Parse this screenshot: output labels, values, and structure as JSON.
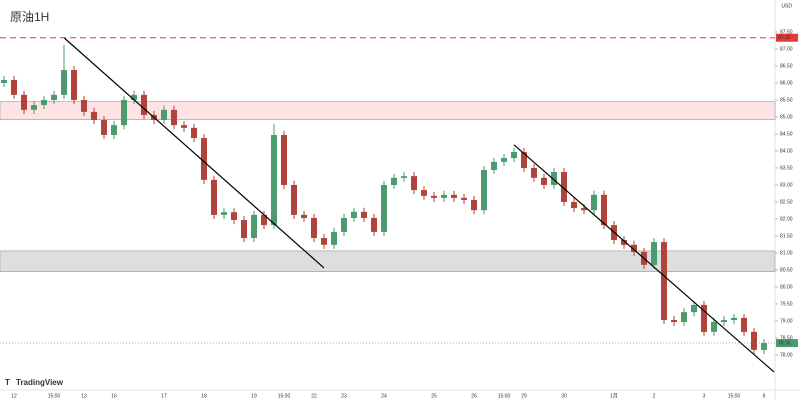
{
  "chart_data": {
    "type": "candlestick",
    "title": "原油1H",
    "currency": "USD",
    "brand": "TradingView",
    "up_color": "#4c9a6f",
    "down_color": "#b0443a",
    "categories": [
      null,
      "12",
      null,
      null,
      null,
      "15:00",
      null,
      null,
      "13",
      null,
      null,
      "16",
      null,
      null,
      null,
      null,
      "17",
      null,
      null,
      null,
      "18",
      null,
      null,
      null,
      null,
      "19",
      null,
      null,
      "15:00",
      null,
      null,
      "22",
      null,
      null,
      "23",
      null,
      null,
      null,
      "24",
      null,
      null,
      null,
      null,
      "25",
      null,
      null,
      null,
      "26",
      null,
      null,
      "15:00",
      null,
      "29",
      null,
      null,
      null,
      "30",
      null,
      null,
      null,
      null,
      "1月",
      null,
      null,
      null,
      "2",
      null,
      null,
      null,
      null,
      "3",
      null,
      null,
      "15:00",
      null,
      null,
      "6"
    ],
    "open": [
      86.0,
      86.09,
      85.65,
      85.21,
      85.35,
      85.5,
      85.65,
      86.38,
      85.5,
      85.15,
      84.91,
      84.47,
      84.76,
      85.5,
      85.65,
      85.06,
      84.91,
      85.21,
      84.76,
      84.68,
      84.38,
      83.15,
      82.12,
      82.2,
      81.97,
      81.44,
      82.12,
      81.82,
      84.47,
      83.0,
      82.12,
      82.03,
      81.44,
      81.24,
      81.62,
      82.03,
      82.21,
      82.03,
      81.62,
      83.0,
      83.21,
      83.26,
      82.85,
      82.68,
      82.62,
      82.71,
      82.62,
      82.56,
      82.26,
      83.44,
      83.68,
      83.79,
      83.97,
      83.5,
      83.21,
      83.0,
      83.38,
      82.5,
      82.32,
      82.26,
      82.71,
      81.82,
      81.38,
      81.24,
      81.03,
      80.65,
      81.32,
      79.03,
      78.97,
      79.26,
      79.47,
      78.68,
      78.97,
      79.03,
      79.09,
      78.68,
      78.15
    ],
    "high": [
      86.21,
      86.21,
      85.77,
      85.47,
      85.62,
      85.77,
      87.12,
      86.5,
      85.62,
      85.27,
      85.03,
      84.88,
      85.62,
      85.77,
      85.77,
      85.18,
      85.33,
      85.33,
      84.88,
      84.8,
      84.5,
      83.27,
      82.32,
      82.32,
      82.09,
      82.24,
      82.24,
      84.8,
      84.59,
      83.12,
      82.24,
      82.15,
      81.56,
      81.74,
      82.15,
      82.33,
      82.33,
      82.15,
      83.12,
      83.33,
      83.38,
      83.38,
      82.97,
      82.8,
      82.83,
      82.83,
      82.74,
      82.68,
      83.56,
      83.8,
      83.91,
      84.09,
      84.09,
      83.62,
      83.33,
      83.5,
      83.5,
      82.62,
      82.44,
      82.83,
      82.83,
      81.94,
      81.5,
      81.36,
      81.15,
      81.44,
      81.44,
      79.15,
      79.38,
      79.59,
      79.59,
      79.09,
      79.15,
      79.21,
      79.21,
      78.8,
      78.47
    ],
    "low": [
      85.88,
      85.53,
      85.09,
      85.09,
      85.23,
      85.38,
      85.53,
      85.38,
      85.03,
      84.79,
      84.35,
      84.35,
      84.64,
      85.38,
      84.94,
      84.79,
      84.79,
      84.64,
      84.56,
      84.26,
      83.03,
      82.0,
      82.0,
      81.85,
      81.32,
      81.32,
      81.7,
      81.7,
      82.88,
      82.0,
      81.91,
      81.32,
      81.12,
      81.12,
      81.5,
      81.91,
      81.91,
      81.5,
      81.5,
      82.88,
      83.09,
      82.73,
      82.56,
      82.5,
      82.5,
      82.5,
      82.44,
      82.14,
      82.14,
      83.32,
      83.56,
      83.67,
      83.38,
      83.09,
      82.88,
      82.88,
      82.38,
      82.2,
      82.14,
      82.14,
      81.7,
      81.26,
      81.12,
      80.91,
      80.53,
      80.53,
      78.91,
      78.85,
      78.85,
      79.14,
      78.56,
      78.56,
      78.85,
      78.91,
      78.56,
      78.03,
      78.03
    ],
    "close": [
      86.09,
      85.65,
      85.21,
      85.35,
      85.5,
      85.65,
      86.38,
      85.5,
      85.15,
      84.91,
      84.47,
      84.76,
      85.5,
      85.65,
      85.06,
      84.91,
      85.21,
      84.76,
      84.68,
      84.38,
      83.15,
      82.12,
      82.2,
      81.97,
      81.44,
      82.12,
      81.82,
      84.47,
      83.0,
      82.12,
      82.03,
      81.44,
      81.24,
      81.62,
      82.03,
      82.21,
      82.03,
      81.62,
      83.0,
      83.21,
      83.26,
      82.85,
      82.68,
      82.62,
      82.71,
      82.62,
      82.56,
      82.26,
      83.44,
      83.68,
      83.79,
      83.97,
      83.5,
      83.21,
      83.0,
      83.38,
      82.5,
      82.32,
      82.26,
      82.71,
      81.82,
      81.38,
      81.24,
      81.03,
      80.65,
      81.32,
      79.03,
      78.97,
      79.26,
      79.47,
      78.68,
      78.97,
      79.03,
      79.09,
      78.68,
      78.15,
      78.35
    ],
    "ylim": [
      76.97,
      88.44
    ],
    "yticks": [
      {
        "value": 78,
        "label": "78.00"
      },
      {
        "value": 78.5,
        "label": "78.50"
      },
      {
        "value": 79,
        "label": "79.00"
      },
      {
        "value": 79.5,
        "label": "79.50"
      },
      {
        "value": 80,
        "label": "80.00"
      },
      {
        "value": 80.5,
        "label": "80.50"
      },
      {
        "value": 81,
        "label": "81.00"
      },
      {
        "value": 81.5,
        "label": "81.50"
      },
      {
        "value": 82,
        "label": "82.00"
      },
      {
        "value": 82.5,
        "label": "82.50"
      },
      {
        "value": 83,
        "label": "83.00"
      },
      {
        "value": 83.5,
        "label": "83.50"
      },
      {
        "value": 84,
        "label": "84.00"
      },
      {
        "value": 84.5,
        "label": "84.50"
      },
      {
        "value": 85,
        "label": "85.00"
      },
      {
        "value": 85.5,
        "label": "85.50"
      },
      {
        "value": 86,
        "label": "86.00"
      },
      {
        "value": 86.5,
        "label": "86.50"
      },
      {
        "value": 87,
        "label": "87.00"
      },
      {
        "value": 87.5,
        "label": "87.50"
      }
    ],
    "zones": [
      {
        "from": 84.92,
        "to": 85.45,
        "color": "#fde3e3"
      },
      {
        "from": 80.45,
        "to": 81.06,
        "color": "#dedede"
      }
    ],
    "level": {
      "value": 87.33,
      "label": "87.33",
      "color": "#e53935"
    },
    "last_price": {
      "value": 78.35,
      "label": "78.35",
      "color": "#4c9a6f"
    },
    "trendlines": [
      {
        "x": [
          6,
          32
        ],
        "y": [
          87.33,
          80.56
        ]
      },
      {
        "x": [
          51,
          77
        ],
        "y": [
          84.18,
          77.5
        ]
      }
    ]
  }
}
